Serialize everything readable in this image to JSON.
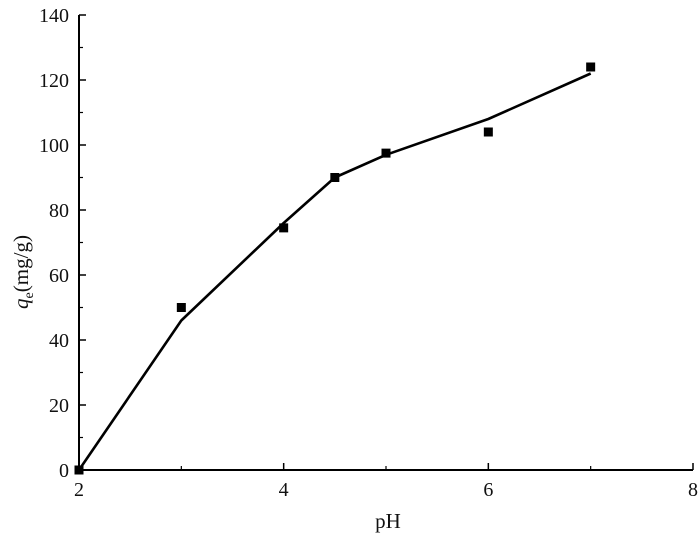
{
  "chart_data": {
    "type": "scatter",
    "xlabel": "pH",
    "ylabel": {
      "symbol": "q",
      "subscript": "e",
      "unit": "(mg/g)"
    },
    "xlim": [
      2,
      8
    ],
    "ylim": [
      0,
      140
    ],
    "xticks": [
      2,
      4,
      6,
      8
    ],
    "yticks": [
      0,
      20,
      40,
      60,
      80,
      100,
      120,
      140
    ],
    "xtick_labels": [
      "2",
      "4",
      "6",
      "8"
    ],
    "ytick_labels": [
      "0",
      "20",
      "40",
      "60",
      "80",
      "100",
      "120",
      "140"
    ],
    "grid": false,
    "series": [
      {
        "kind": "marker",
        "marker": "square",
        "color": "#000000",
        "x": [
          2,
          3,
          4,
          4.5,
          5,
          6,
          7
        ],
        "y": [
          0,
          50,
          74.5,
          90,
          97.5,
          104,
          124
        ]
      },
      {
        "kind": "line",
        "color": "#000000",
        "x": [
          2,
          3,
          4,
          4.5,
          5,
          6,
          7
        ],
        "y": [
          0,
          46,
          76,
          90,
          97,
          108,
          122
        ]
      }
    ]
  }
}
